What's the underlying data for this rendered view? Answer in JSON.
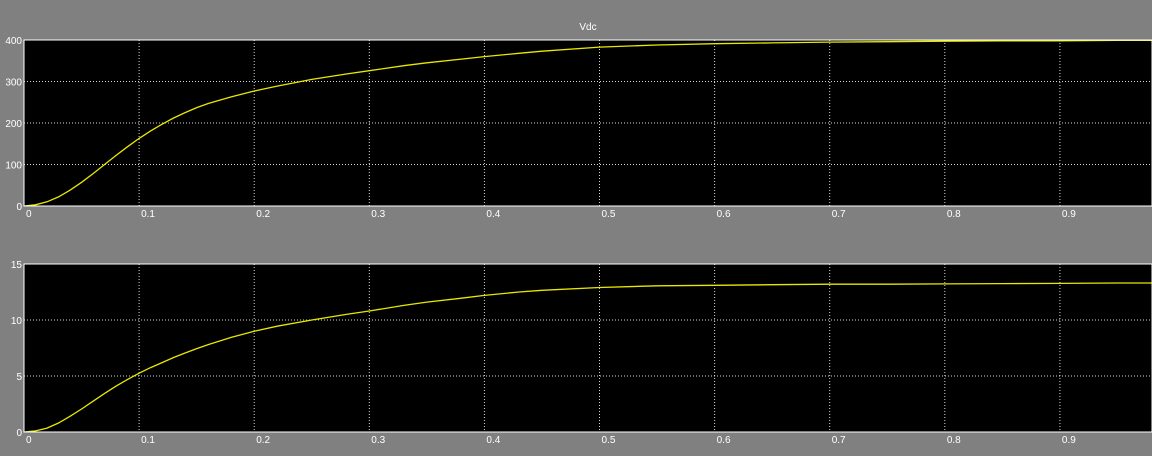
{
  "window": {
    "background_color": "#808080",
    "plot_background_color": "#000000",
    "grid_color": "#ffffff",
    "trace_color": "#e8e800"
  },
  "chart_data": [
    {
      "type": "line",
      "title": "Vdc",
      "xlim": [
        0,
        0.98
      ],
      "ylim": [
        0,
        400
      ],
      "x_ticks": [
        0,
        0.1,
        0.2,
        0.3,
        0.4,
        0.5,
        0.6,
        0.7,
        0.8,
        0.9
      ],
      "x_tick_labels": [
        "0",
        "0.1",
        "0.2",
        "0.3",
        "0.4",
        "0.5",
        "0.6",
        "0.7",
        "0.8",
        "0.9"
      ],
      "y_ticks": [
        0,
        100,
        200,
        300,
        400
      ],
      "y_tick_labels": [
        "0",
        "100",
        "200",
        "300",
        "400"
      ],
      "grid": true,
      "series": [
        {
          "x": [
            0,
            0.01,
            0.02,
            0.03,
            0.04,
            0.05,
            0.06,
            0.07,
            0.08,
            0.09,
            0.1,
            0.11,
            0.12,
            0.13,
            0.14,
            0.15,
            0.16,
            0.18,
            0.2,
            0.22,
            0.25,
            0.28,
            0.3,
            0.33,
            0.35,
            0.38,
            0.4,
            0.43,
            0.45,
            0.5,
            0.55,
            0.6,
            0.65,
            0.7,
            0.75,
            0.8,
            0.85,
            0.9,
            0.95,
            0.98
          ],
          "y": [
            0,
            3,
            10,
            22,
            38,
            57,
            78,
            100,
            122,
            143,
            163,
            181,
            197,
            212,
            225,
            237,
            247,
            263,
            277,
            289,
            305,
            318,
            326,
            338,
            345,
            354,
            360,
            368,
            373,
            383,
            388,
            391,
            393,
            395,
            396,
            397,
            398,
            398,
            399,
            399
          ]
        }
      ]
    },
    {
      "type": "line",
      "title": "",
      "xlim": [
        0,
        0.98
      ],
      "ylim": [
        0,
        15
      ],
      "x_ticks": [
        0,
        0.1,
        0.2,
        0.3,
        0.4,
        0.5,
        0.6,
        0.7,
        0.8,
        0.9
      ],
      "x_tick_labels": [
        "0",
        "0.1",
        "0.2",
        "0.3",
        "0.4",
        "0.5",
        "0.6",
        "0.7",
        "0.8",
        "0.9"
      ],
      "y_ticks": [
        0,
        5,
        10,
        15
      ],
      "y_tick_labels": [
        "0",
        "5",
        "10",
        "15"
      ],
      "grid": true,
      "series": [
        {
          "x": [
            0,
            0.01,
            0.02,
            0.03,
            0.04,
            0.05,
            0.06,
            0.07,
            0.08,
            0.09,
            0.1,
            0.11,
            0.12,
            0.13,
            0.14,
            0.15,
            0.16,
            0.18,
            0.2,
            0.22,
            0.25,
            0.28,
            0.3,
            0.33,
            0.35,
            0.38,
            0.4,
            0.43,
            0.45,
            0.5,
            0.55,
            0.6,
            0.65,
            0.7,
            0.75,
            0.8,
            0.85,
            0.9,
            0.95,
            0.98
          ],
          "y": [
            0,
            0.1,
            0.35,
            0.8,
            1.4,
            2.05,
            2.75,
            3.45,
            4.1,
            4.7,
            5.25,
            5.75,
            6.2,
            6.65,
            7.05,
            7.45,
            7.8,
            8.45,
            9.0,
            9.45,
            10.0,
            10.5,
            10.8,
            11.3,
            11.6,
            11.95,
            12.2,
            12.5,
            12.65,
            12.9,
            13.05,
            13.1,
            13.15,
            13.2,
            13.2,
            13.22,
            13.25,
            13.27,
            13.3,
            13.3
          ]
        }
      ]
    }
  ]
}
